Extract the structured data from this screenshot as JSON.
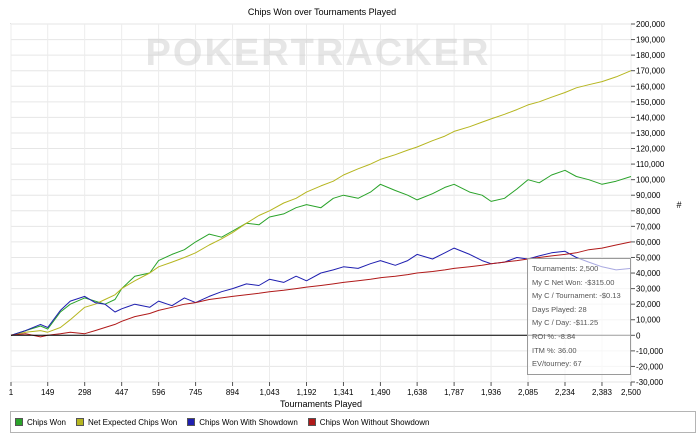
{
  "watermark": "POKERTRACKER",
  "chart_data": {
    "type": "line",
    "title": "Chips Won over Tournaments Played",
    "xlabel": "Tournaments Played",
    "ylabel": "",
    "xlim": [
      1,
      2500
    ],
    "ylim": [
      -30000,
      200000
    ],
    "x_ticks": [
      1,
      149,
      298,
      447,
      596,
      745,
      894,
      1043,
      1192,
      1341,
      1490,
      1638,
      1787,
      1936,
      2085,
      2234,
      2383,
      2500
    ],
    "x_tick_labels": [
      "1",
      "149",
      "298",
      "447",
      "596",
      "745",
      "894",
      "1,043",
      "1,192",
      "1,341",
      "1,490",
      "1,638",
      "1,787",
      "1,936",
      "2,085",
      "2,234",
      "2,383",
      "2,500"
    ],
    "y_ticks": [
      -30000,
      -20000,
      -10000,
      0,
      10000,
      20000,
      30000,
      40000,
      50000,
      60000,
      70000,
      80000,
      90000,
      100000,
      110000,
      120000,
      130000,
      140000,
      150000,
      160000,
      170000,
      180000,
      190000,
      200000
    ],
    "y_tick_labels": [
      "-30,000",
      "-20,000",
      "-10,000",
      "0",
      "10,000",
      "20,000",
      "30,000",
      "40,000",
      "50,000",
      "60,000",
      "70,000",
      "80,000",
      "90,000",
      "100,000",
      "110,000",
      "120,000",
      "130,000",
      "140,000",
      "150,000",
      "160,000",
      "170,000",
      "180,000",
      "190,000",
      "200,000"
    ],
    "y_axis_unit": "#",
    "grid": true,
    "legend_position": "bottom",
    "series": [
      {
        "name": "Chips Won",
        "color": "#2aa32a",
        "x": [
          1,
          60,
          120,
          149,
          200,
          240,
          298,
          340,
          380,
          420,
          447,
          500,
          560,
          596,
          650,
          700,
          745,
          800,
          850,
          894,
          950,
          1000,
          1043,
          1100,
          1150,
          1192,
          1250,
          1300,
          1341,
          1400,
          1450,
          1490,
          1550,
          1600,
          1638,
          1700,
          1750,
          1787,
          1850,
          1900,
          1936,
          1990,
          2040,
          2085,
          2130,
          2180,
          2234,
          2280,
          2330,
          2383,
          2440,
          2500
        ],
        "values": [
          0,
          3000,
          6000,
          4000,
          15000,
          20000,
          24000,
          22000,
          20000,
          23000,
          30000,
          38000,
          40000,
          48000,
          52000,
          55000,
          60000,
          65000,
          63000,
          67000,
          72000,
          71000,
          76000,
          78000,
          82000,
          84000,
          82000,
          88000,
          90000,
          88000,
          92000,
          97000,
          93000,
          90000,
          87000,
          91000,
          95000,
          97000,
          92000,
          90000,
          86000,
          88000,
          94000,
          100000,
          98000,
          103000,
          106000,
          102000,
          100000,
          97000,
          99000,
          102000
        ]
      },
      {
        "name": "Net Expected Chips Won",
        "color": "#b6b620",
        "x": [
          1,
          60,
          120,
          149,
          200,
          240,
          298,
          340,
          380,
          420,
          447,
          500,
          560,
          596,
          650,
          700,
          745,
          800,
          850,
          894,
          950,
          1000,
          1043,
          1100,
          1150,
          1192,
          1250,
          1300,
          1341,
          1400,
          1450,
          1490,
          1550,
          1600,
          1638,
          1700,
          1750,
          1787,
          1850,
          1900,
          1936,
          1990,
          2040,
          2085,
          2130,
          2180,
          2234,
          2280,
          2330,
          2383,
          2440,
          2500
        ],
        "values": [
          0,
          2000,
          3000,
          2000,
          5000,
          10000,
          18000,
          20000,
          23000,
          26000,
          30000,
          35000,
          40000,
          44000,
          47000,
          50000,
          53000,
          58000,
          62000,
          66000,
          72000,
          77000,
          80000,
          85000,
          88000,
          92000,
          96000,
          99000,
          103000,
          107000,
          110000,
          113000,
          116000,
          119000,
          121000,
          125000,
          128000,
          131000,
          134000,
          137000,
          139000,
          142000,
          145000,
          148000,
          150000,
          153000,
          156000,
          159000,
          161000,
          163000,
          166000,
          170000
        ]
      },
      {
        "name": "Chips Won With Showdown",
        "color": "#1f1fb0",
        "x": [
          1,
          60,
          120,
          149,
          200,
          240,
          298,
          340,
          380,
          420,
          447,
          500,
          560,
          596,
          650,
          700,
          745,
          800,
          850,
          894,
          950,
          1000,
          1043,
          1100,
          1150,
          1192,
          1250,
          1300,
          1341,
          1400,
          1450,
          1490,
          1550,
          1600,
          1638,
          1700,
          1750,
          1787,
          1850,
          1900,
          1936,
          1990,
          2040,
          2085,
          2130,
          2180,
          2234,
          2280,
          2330,
          2383,
          2440,
          2500
        ],
        "values": [
          0,
          3000,
          7000,
          5000,
          16000,
          22000,
          25000,
          21000,
          20000,
          15000,
          17000,
          20000,
          18000,
          22000,
          19000,
          24000,
          21000,
          25000,
          28000,
          30000,
          33000,
          32000,
          36000,
          34000,
          38000,
          35000,
          40000,
          42000,
          44000,
          43000,
          46000,
          48000,
          45000,
          48000,
          52000,
          49000,
          53000,
          56000,
          52000,
          48000,
          46000,
          47000,
          50000,
          49000,
          51000,
          53000,
          54000,
          50000,
          47000,
          44000,
          42000,
          43000
        ]
      },
      {
        "name": "Chips Won Without Showdown",
        "color": "#b01a1a",
        "x": [
          1,
          60,
          120,
          149,
          200,
          240,
          298,
          340,
          380,
          420,
          447,
          500,
          560,
          596,
          650,
          700,
          745,
          800,
          850,
          894,
          950,
          1000,
          1043,
          1100,
          1150,
          1192,
          1250,
          1300,
          1341,
          1400,
          1450,
          1490,
          1550,
          1600,
          1638,
          1700,
          1750,
          1787,
          1850,
          1900,
          1936,
          1990,
          2040,
          2085,
          2130,
          2180,
          2234,
          2280,
          2330,
          2383,
          2440,
          2500
        ],
        "values": [
          0,
          1000,
          -1000,
          0,
          1000,
          2000,
          1000,
          3000,
          5000,
          7000,
          9000,
          12000,
          14000,
          16000,
          18000,
          20000,
          21000,
          23000,
          24000,
          25000,
          26000,
          27000,
          28000,
          29000,
          30000,
          31000,
          32000,
          33000,
          34000,
          35000,
          36000,
          37000,
          38000,
          39000,
          40000,
          41000,
          42000,
          43000,
          44000,
          45000,
          46000,
          47000,
          48000,
          49000,
          50000,
          51000,
          52000,
          53000,
          55000,
          56000,
          58000,
          60000
        ]
      }
    ]
  },
  "tooltip": {
    "lines": [
      "Tournaments: 2,500",
      "My C Net Won: -$315.00",
      "My C / Tournament: -$0.13",
      "Days Played: 28",
      "My C / Day: -$11.25",
      "ROI %: -8.84",
      "ITM %: 36.00",
      "EV/tourney: 67"
    ]
  }
}
